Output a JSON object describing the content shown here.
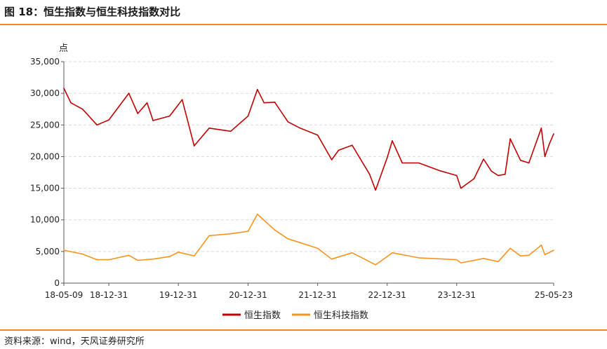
{
  "figure": {
    "title": "图 18：恒生指数与恒生科技指数对比",
    "source": "资料来源：wind，天风证券研究所"
  },
  "colors": {
    "hsi": "#c00000",
    "hstech": "#f7941d",
    "rule": "#e8892b",
    "grid": "#d9d9d9"
  },
  "chart_data": {
    "type": "line",
    "title": "",
    "xlabel": "",
    "ylabel": "点",
    "ylim": [
      0,
      35000
    ],
    "yticks": [
      0,
      5000,
      10000,
      15000,
      20000,
      25000,
      30000,
      35000
    ],
    "ytick_labels": [
      "0",
      "5,000",
      "10,000",
      "15,000",
      "20,000",
      "25,000",
      "30,000",
      "35,000"
    ],
    "xlim": [
      "2018-05-09",
      "2025-05-23"
    ],
    "xticks": [
      "2018-05-09",
      "2018-12-31",
      "2019-12-31",
      "2020-12-31",
      "2021-12-31",
      "2022-12-31",
      "2023-12-31",
      "2025-05-23"
    ],
    "xtick_labels": [
      "18-05-09",
      "18-12-31",
      "19-12-31",
      "20-12-31",
      "21-12-31",
      "22-12-31",
      "23-12-31",
      "25-05-23"
    ],
    "grid": "horizontal dashed",
    "legend": "bottom-center",
    "series": [
      {
        "name": "恒生指数",
        "x": [
          "2018-05-09",
          "2018-06-15",
          "2018-08-15",
          "2018-10-30",
          "2018-12-31",
          "2019-04-15",
          "2019-06-01",
          "2019-07-20",
          "2019-08-20",
          "2019-11-15",
          "2019-12-31",
          "2020-01-20",
          "2020-03-23",
          "2020-06-10",
          "2020-10-01",
          "2020-12-31",
          "2021-02-18",
          "2021-03-25",
          "2021-05-20",
          "2021-07-28",
          "2021-09-30",
          "2021-12-31",
          "2022-03-15",
          "2022-04-20",
          "2022-06-30",
          "2022-09-30",
          "2022-10-31",
          "2022-12-31",
          "2023-01-27",
          "2023-03-20",
          "2023-06-15",
          "2023-09-30",
          "2023-12-31",
          "2024-01-22",
          "2024-03-31",
          "2024-05-20",
          "2024-06-30",
          "2024-08-05",
          "2024-09-10",
          "2024-10-07",
          "2024-11-30",
          "2025-01-13",
          "2025-03-19",
          "2025-04-07",
          "2025-04-30",
          "2025-05-23"
        ],
        "values": [
          30800,
          28500,
          27500,
          25000,
          25800,
          30000,
          26800,
          28500,
          25700,
          26400,
          28200,
          29000,
          21700,
          24500,
          24000,
          26400,
          30600,
          28500,
          28600,
          25500,
          24500,
          23400,
          19500,
          21000,
          21800,
          17200,
          14700,
          19800,
          22500,
          19000,
          19000,
          17800,
          17000,
          15000,
          16500,
          19600,
          17700,
          17000,
          17200,
          22800,
          19400,
          19000,
          24500,
          20000,
          22000,
          23600
        ]
      },
      {
        "name": "恒生科技指数",
        "x": [
          "2018-05-09",
          "2018-08-15",
          "2018-10-30",
          "2018-12-31",
          "2019-04-15",
          "2019-06-01",
          "2019-08-20",
          "2019-11-15",
          "2019-12-31",
          "2020-03-23",
          "2020-06-10",
          "2020-10-01",
          "2020-12-31",
          "2021-02-18",
          "2021-05-20",
          "2021-07-28",
          "2021-09-30",
          "2021-12-31",
          "2022-03-15",
          "2022-06-30",
          "2022-10-31",
          "2022-12-31",
          "2023-01-27",
          "2023-06-15",
          "2023-12-31",
          "2024-01-22",
          "2024-05-20",
          "2024-08-05",
          "2024-10-07",
          "2024-11-30",
          "2025-01-13",
          "2025-03-19",
          "2025-04-07",
          "2025-05-23"
        ],
        "values": [
          5200,
          4600,
          3700,
          3700,
          4400,
          3600,
          3800,
          4200,
          4900,
          4300,
          7500,
          7800,
          8200,
          10900,
          8400,
          7000,
          6400,
          5500,
          3800,
          4800,
          2900,
          4200,
          4800,
          4000,
          3700,
          3200,
          3900,
          3400,
          5500,
          4300,
          4400,
          6000,
          4500,
          5200
        ]
      }
    ]
  }
}
